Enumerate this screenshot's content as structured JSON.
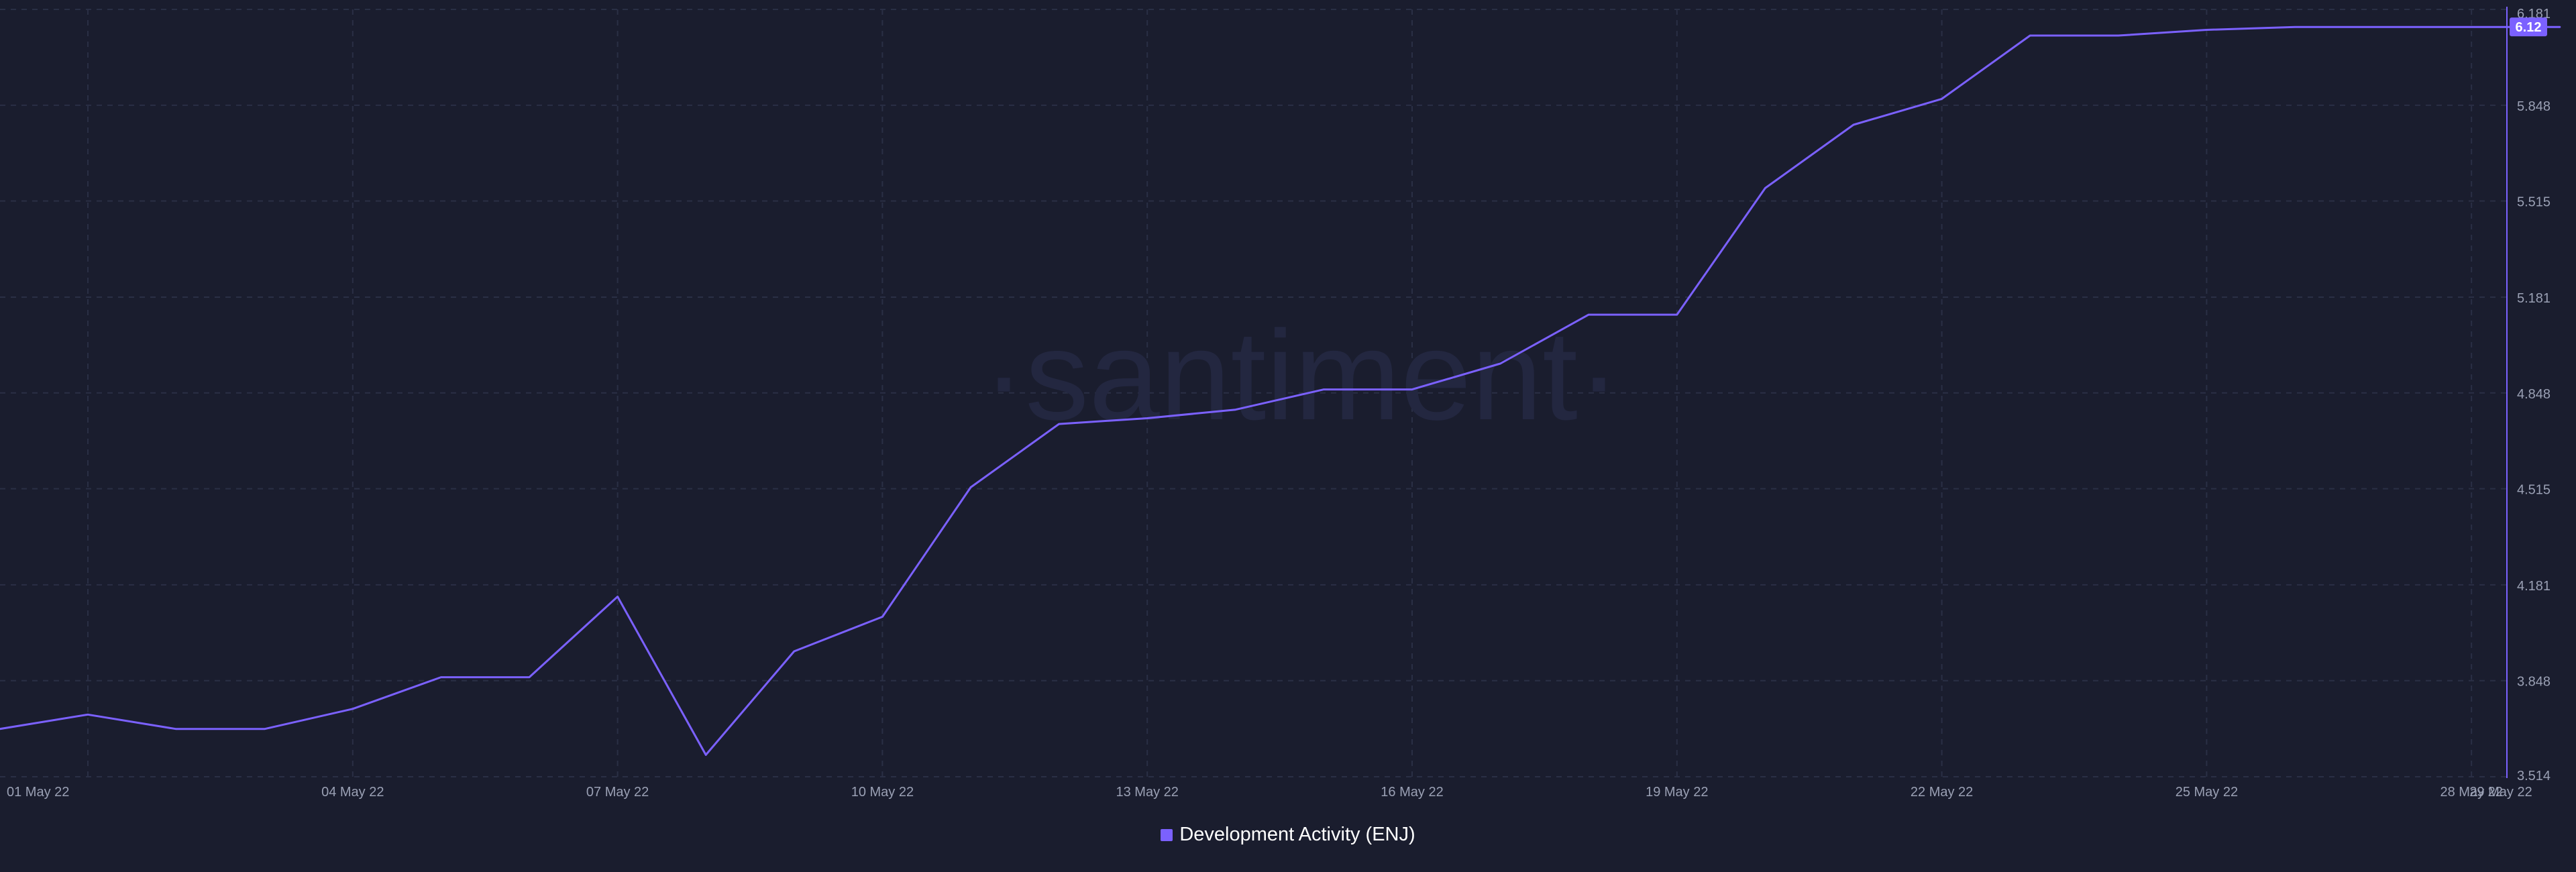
{
  "brand": {
    "watermark": "·santiment·"
  },
  "colors": {
    "background": "#1a1d2e",
    "grid": "#2a2f45",
    "series": "#7b61ff",
    "axis_text": "#9aa0b4",
    "badge_text": "#ffffff"
  },
  "chart_data": {
    "type": "line",
    "x_ticks": [
      "01 May 22",
      "04 May 22",
      "07 May 22",
      "10 May 22",
      "13 May 22",
      "16 May 22",
      "19 May 22",
      "22 May 22",
      "25 May 22",
      "28 May 22",
      "29 May 22"
    ],
    "y_ticks": [
      "6.181",
      "5.848",
      "5.515",
      "5.181",
      "4.848",
      "4.515",
      "4.181",
      "3.848",
      "3.514"
    ],
    "ylim": [
      3.514,
      6.181
    ],
    "grid": true,
    "legend_placement": "bottom-center",
    "current_value_label": "6.12",
    "series": [
      {
        "name": "Development Activity (ENJ)",
        "x": [
          "30 Apr 22",
          "01 May 22",
          "02 May 22",
          "03 May 22",
          "04 May 22",
          "05 May 22",
          "06 May 22",
          "07 May 22",
          "08 May 22",
          "09 May 22",
          "10 May 22",
          "11 May 22",
          "12 May 22",
          "13 May 22",
          "14 May 22",
          "15 May 22",
          "16 May 22",
          "17 May 22",
          "18 May 22",
          "19 May 22",
          "20 May 22",
          "21 May 22",
          "22 May 22",
          "23 May 22",
          "24 May 22",
          "25 May 22",
          "26 May 22",
          "27 May 22",
          "28 May 22",
          "29 May 22"
        ],
        "values": [
          3.68,
          3.73,
          3.68,
          3.68,
          3.75,
          3.86,
          3.86,
          4.14,
          3.59,
          3.95,
          4.07,
          4.52,
          4.74,
          4.76,
          4.79,
          4.86,
          4.86,
          4.95,
          5.12,
          5.12,
          5.56,
          5.78,
          5.87,
          6.09,
          6.09,
          6.11,
          6.12,
          6.12,
          6.12,
          6.12
        ]
      }
    ]
  }
}
